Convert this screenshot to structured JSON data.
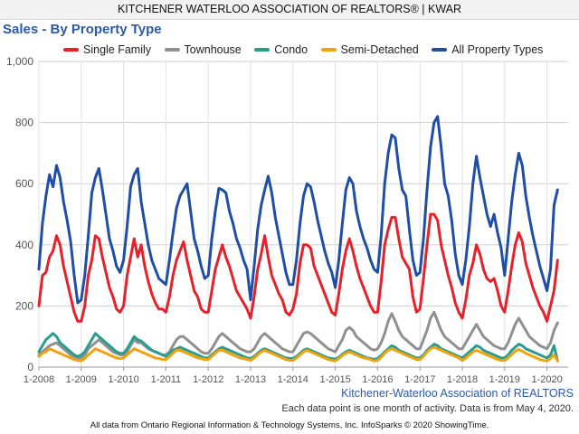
{
  "header": {
    "banner": "KITCHENER WATERLOO ASSOCIATION OF REALTORS® | KWAR"
  },
  "footer": {
    "source": "Kitchener-Waterloo Association of REALTORS",
    "note": "Each data point is one month of activity. Data is from May 4, 2020.",
    "credit": "All data from Ontario Regional Information & Technology Systems, Inc. InfoSparks © 2020 ShowingTime."
  },
  "chart_data": {
    "type": "line",
    "title": "Sales - By Property Type",
    "xlabel": "",
    "ylabel": "",
    "ylim": [
      0,
      1000
    ],
    "yticks": [
      0,
      200,
      400,
      600,
      800,
      1000
    ],
    "ytick_labels": [
      "0",
      "200",
      "400",
      "600",
      "800",
      "1,000"
    ],
    "xtick_labels": [
      "1-2008",
      "1-2009",
      "1-2010",
      "1-2011",
      "1-2012",
      "1-2013",
      "1-2014",
      "1-2015",
      "1-2016",
      "1-2017",
      "1-2018",
      "1-2019",
      "1-2020"
    ],
    "x_start": "2008-01",
    "x_end": "2020-04",
    "grid": true,
    "legend_position": "top",
    "series": [
      {
        "name": "Single Family",
        "color": "#e8202a",
        "values": [
          200,
          300,
          310,
          360,
          380,
          430,
          400,
          330,
          280,
          230,
          180,
          150,
          150,
          200,
          300,
          350,
          430,
          420,
          360,
          310,
          260,
          230,
          190,
          180,
          200,
          300,
          360,
          420,
          360,
          400,
          330,
          280,
          240,
          210,
          190,
          190,
          180,
          230,
          300,
          350,
          380,
          410,
          350,
          300,
          250,
          230,
          190,
          180,
          180,
          250,
          320,
          360,
          400,
          360,
          330,
          290,
          250,
          230,
          210,
          190,
          160,
          230,
          320,
          370,
          430,
          360,
          300,
          270,
          240,
          220,
          180,
          170,
          190,
          240,
          340,
          400,
          400,
          390,
          330,
          300,
          270,
          240,
          210,
          180,
          170,
          240,
          320,
          380,
          420,
          380,
          330,
          290,
          260,
          230,
          200,
          180,
          180,
          280,
          400,
          450,
          490,
          490,
          420,
          360,
          340,
          320,
          230,
          180,
          190,
          290,
          400,
          500,
          500,
          480,
          400,
          350,
          300,
          260,
          210,
          180,
          160,
          220,
          300,
          340,
          400,
          370,
          320,
          290,
          280,
          290,
          250,
          200,
          180,
          250,
          330,
          400,
          440,
          410,
          340,
          300,
          260,
          230,
          200,
          180,
          150,
          200,
          250,
          350
        ]
      },
      {
        "name": "Townhouse",
        "color": "#909090",
        "values": [
          40,
          50,
          60,
          70,
          75,
          80,
          70,
          60,
          50,
          40,
          35,
          30,
          30,
          40,
          60,
          70,
          80,
          90,
          80,
          70,
          60,
          50,
          45,
          40,
          40,
          50,
          70,
          90,
          80,
          80,
          70,
          60,
          55,
          50,
          45,
          40,
          40,
          50,
          70,
          90,
          100,
          100,
          90,
          80,
          70,
          60,
          50,
          45,
          45,
          60,
          80,
          100,
          110,
          100,
          90,
          80,
          70,
          60,
          55,
          50,
          50,
          60,
          80,
          100,
          110,
          100,
          90,
          80,
          70,
          60,
          55,
          50,
          50,
          70,
          90,
          110,
          115,
          110,
          100,
          90,
          80,
          70,
          60,
          55,
          50,
          70,
          90,
          120,
          130,
          120,
          100,
          90,
          80,
          70,
          60,
          55,
          60,
          80,
          110,
          150,
          175,
          150,
          120,
          100,
          90,
          80,
          70,
          60,
          60,
          90,
          120,
          160,
          180,
          150,
          120,
          100,
          90,
          80,
          70,
          60,
          60,
          80,
          100,
          120,
          140,
          120,
          100,
          90,
          80,
          70,
          65,
          60,
          60,
          80,
          110,
          140,
          160,
          140,
          120,
          100,
          90,
          80,
          70,
          65,
          60,
          80,
          120,
          145
        ]
      },
      {
        "name": "Condo",
        "color": "#2a9d8f",
        "values": [
          50,
          70,
          90,
          100,
          110,
          100,
          80,
          70,
          60,
          50,
          40,
          35,
          40,
          50,
          70,
          90,
          110,
          100,
          90,
          80,
          70,
          60,
          50,
          45,
          45,
          60,
          80,
          100,
          90,
          85,
          75,
          65,
          55,
          50,
          45,
          40,
          35,
          45,
          55,
          60,
          65,
          60,
          55,
          50,
          45,
          40,
          35,
          30,
          30,
          40,
          50,
          60,
          65,
          60,
          55,
          50,
          45,
          40,
          35,
          30,
          28,
          35,
          45,
          55,
          60,
          55,
          50,
          45,
          40,
          35,
          30,
          28,
          28,
          35,
          45,
          55,
          60,
          55,
          50,
          45,
          40,
          35,
          30,
          28,
          26,
          32,
          42,
          50,
          55,
          50,
          45,
          40,
          35,
          30,
          28,
          25,
          28,
          38,
          50,
          60,
          70,
          65,
          55,
          50,
          45,
          40,
          35,
          30,
          30,
          40,
          55,
          65,
          75,
          70,
          60,
          55,
          50,
          45,
          40,
          35,
          30,
          40,
          50,
          60,
          70,
          65,
          55,
          50,
          45,
          40,
          35,
          30,
          30,
          40,
          55,
          65,
          75,
          70,
          60,
          55,
          50,
          45,
          40,
          35,
          30,
          40,
          70,
          20
        ]
      },
      {
        "name": "Semi-Detached",
        "color": "#f2a20c",
        "values": [
          35,
          45,
          50,
          60,
          55,
          50,
          45,
          40,
          35,
          30,
          25,
          22,
          20,
          28,
          40,
          50,
          60,
          55,
          50,
          45,
          40,
          35,
          30,
          28,
          30,
          40,
          50,
          60,
          55,
          50,
          45,
          40,
          35,
          30,
          28,
          25,
          25,
          35,
          45,
          55,
          55,
          50,
          45,
          40,
          35,
          30,
          28,
          25,
          25,
          35,
          45,
          55,
          55,
          50,
          45,
          40,
          35,
          30,
          28,
          25,
          22,
          30,
          40,
          50,
          55,
          50,
          45,
          40,
          35,
          30,
          25,
          22,
          22,
          30,
          40,
          50,
          55,
          50,
          45,
          40,
          35,
          30,
          25,
          22,
          20,
          28,
          38,
          45,
          50,
          45,
          40,
          35,
          30,
          28,
          25,
          20,
          22,
          32,
          45,
          55,
          60,
          55,
          50,
          45,
          40,
          35,
          30,
          25,
          25,
          35,
          50,
          60,
          65,
          60,
          55,
          50,
          45,
          40,
          35,
          30,
          22,
          30,
          40,
          50,
          55,
          50,
          45,
          40,
          35,
          30,
          25,
          22,
          22,
          30,
          42,
          52,
          58,
          52,
          45,
          40,
          35,
          30,
          25,
          22,
          20,
          28,
          40,
          20
        ]
      },
      {
        "name": "All Property Types",
        "color": "#1f4ea6",
        "values": [
          320,
          470,
          560,
          630,
          590,
          660,
          620,
          540,
          480,
          410,
          300,
          210,
          220,
          300,
          430,
          570,
          620,
          650,
          580,
          500,
          420,
          380,
          330,
          310,
          350,
          460,
          590,
          630,
          650,
          540,
          470,
          400,
          350,
          320,
          290,
          280,
          270,
          350,
          440,
          520,
          560,
          580,
          600,
          510,
          420,
          380,
          330,
          290,
          300,
          420,
          510,
          585,
          580,
          570,
          510,
          470,
          420,
          390,
          350,
          320,
          220,
          330,
          450,
          530,
          580,
          625,
          570,
          490,
          430,
          370,
          310,
          270,
          270,
          350,
          470,
          560,
          600,
          590,
          540,
          480,
          430,
          380,
          340,
          310,
          260,
          350,
          470,
          580,
          620,
          600,
          510,
          460,
          420,
          390,
          350,
          320,
          310,
          430,
          600,
          700,
          760,
          750,
          650,
          580,
          560,
          450,
          350,
          300,
          310,
          420,
          580,
          720,
          800,
          820,
          720,
          600,
          560,
          480,
          370,
          300,
          270,
          350,
          460,
          600,
          690,
          620,
          560,
          500,
          460,
          500,
          440,
          390,
          300,
          420,
          540,
          630,
          700,
          660,
          560,
          490,
          430,
          380,
          330,
          290,
          250,
          320,
          530,
          580
        ]
      }
    ]
  }
}
